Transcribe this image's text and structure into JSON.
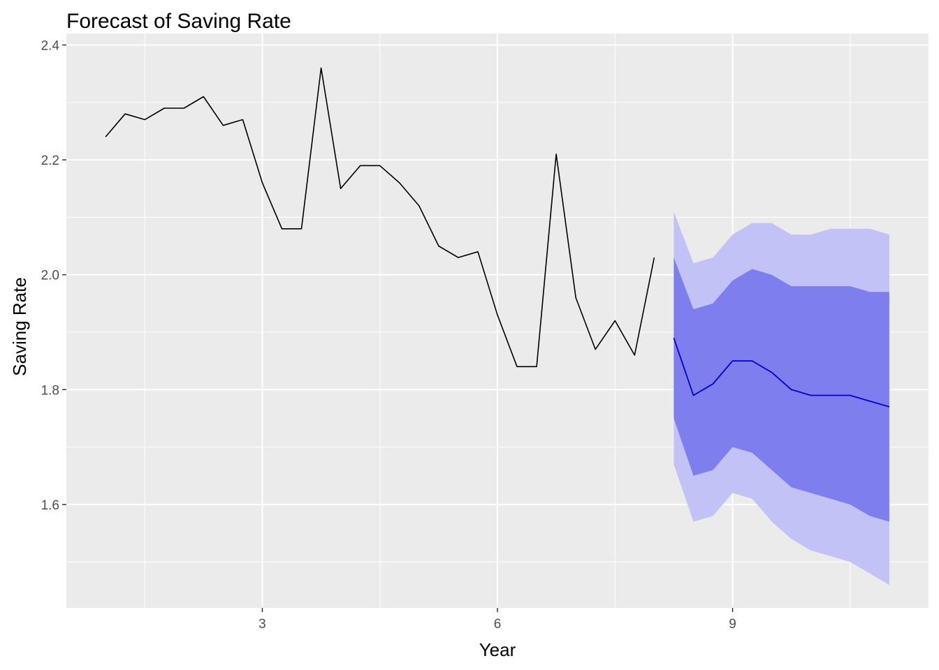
{
  "chart_data": {
    "type": "line",
    "title": "Forecast of Saving Rate",
    "xlabel": "Year",
    "ylabel": "Saving Rate",
    "xlim": [
      0.5,
      11.5
    ],
    "ylim": [
      1.42,
      2.42
    ],
    "x_ticks": [
      3,
      6,
      9
    ],
    "y_ticks": [
      1.6,
      1.8,
      2.0,
      2.2,
      2.4
    ],
    "x_tick_labels": [
      "3",
      "6",
      "9"
    ],
    "y_tick_labels": [
      "1.6",
      "1.8",
      "2.0",
      "2.2",
      "2.4"
    ],
    "grid": true,
    "colors": {
      "panel": "#ebebeb",
      "grid": "#ffffff",
      "history_line": "#000000",
      "forecast_line": "#0000cc",
      "band_80": "#7e7eef",
      "band_95": "#c2c2f6"
    },
    "series": [
      {
        "role": "history",
        "x": [
          1.0,
          1.25,
          1.5,
          1.75,
          2.0,
          2.25,
          2.5,
          2.75,
          3.0,
          3.25,
          3.5,
          3.75,
          4.0,
          4.25,
          4.5,
          4.75,
          5.0,
          5.25,
          5.5,
          5.75,
          6.0,
          6.25,
          6.5,
          6.75,
          7.0,
          7.25,
          7.5,
          7.75,
          8.0
        ],
        "values": [
          2.24,
          2.28,
          2.27,
          2.29,
          2.29,
          2.31,
          2.26,
          2.27,
          2.16,
          2.08,
          2.08,
          2.36,
          2.15,
          2.19,
          2.19,
          2.16,
          2.12,
          2.05,
          2.03,
          2.04,
          1.93,
          1.84,
          1.84,
          2.21,
          1.96,
          1.87,
          1.92,
          1.86,
          2.03
        ]
      },
      {
        "role": "forecast",
        "x": [
          8.25,
          8.5,
          8.75,
          9.0,
          9.25,
          9.5,
          9.75,
          10.0,
          10.25,
          10.5,
          10.75,
          11.0
        ],
        "values": [
          1.89,
          1.79,
          1.81,
          1.85,
          1.85,
          1.83,
          1.8,
          1.79,
          1.79,
          1.79,
          1.78,
          1.77
        ],
        "lower80": [
          1.75,
          1.65,
          1.66,
          1.7,
          1.69,
          1.66,
          1.63,
          1.62,
          1.61,
          1.6,
          1.58,
          1.57
        ],
        "upper80": [
          2.03,
          1.94,
          1.95,
          1.99,
          2.01,
          2.0,
          1.98,
          1.98,
          1.98,
          1.98,
          1.97,
          1.97
        ],
        "lower95": [
          1.67,
          1.57,
          1.58,
          1.62,
          1.61,
          1.57,
          1.54,
          1.52,
          1.51,
          1.5,
          1.48,
          1.46
        ],
        "upper95": [
          2.11,
          2.02,
          2.03,
          2.07,
          2.09,
          2.09,
          2.07,
          2.07,
          2.08,
          2.08,
          2.08,
          2.07
        ]
      }
    ]
  }
}
